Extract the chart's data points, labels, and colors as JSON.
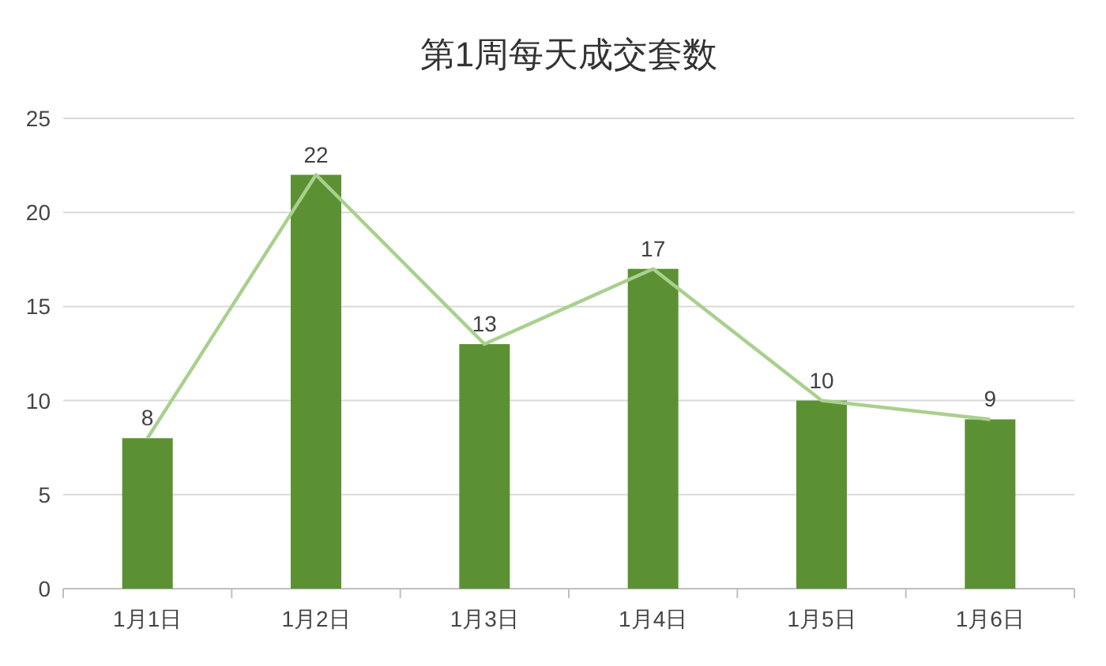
{
  "chart_data": {
    "type": "bar",
    "title": "第1周每天成交套数",
    "categories": [
      "1月1日",
      "1月2日",
      "1月3日",
      "1月4日",
      "1月5日",
      "1月6日"
    ],
    "series": [
      {
        "color": "#5b9133",
        "values": [
          8,
          22,
          13,
          17,
          10,
          9
        ],
        "value_labels": [
          "8",
          "22",
          "13",
          "17",
          "10",
          "9"
        ]
      },
      {
        "type": "line",
        "color": "#a9d08e",
        "values": [
          8,
          22,
          13,
          17,
          10,
          9
        ]
      }
    ],
    "ylim": [
      0,
      25
    ],
    "yticks": [
      0,
      5,
      10,
      15,
      20,
      25
    ],
    "grid": "y"
  }
}
